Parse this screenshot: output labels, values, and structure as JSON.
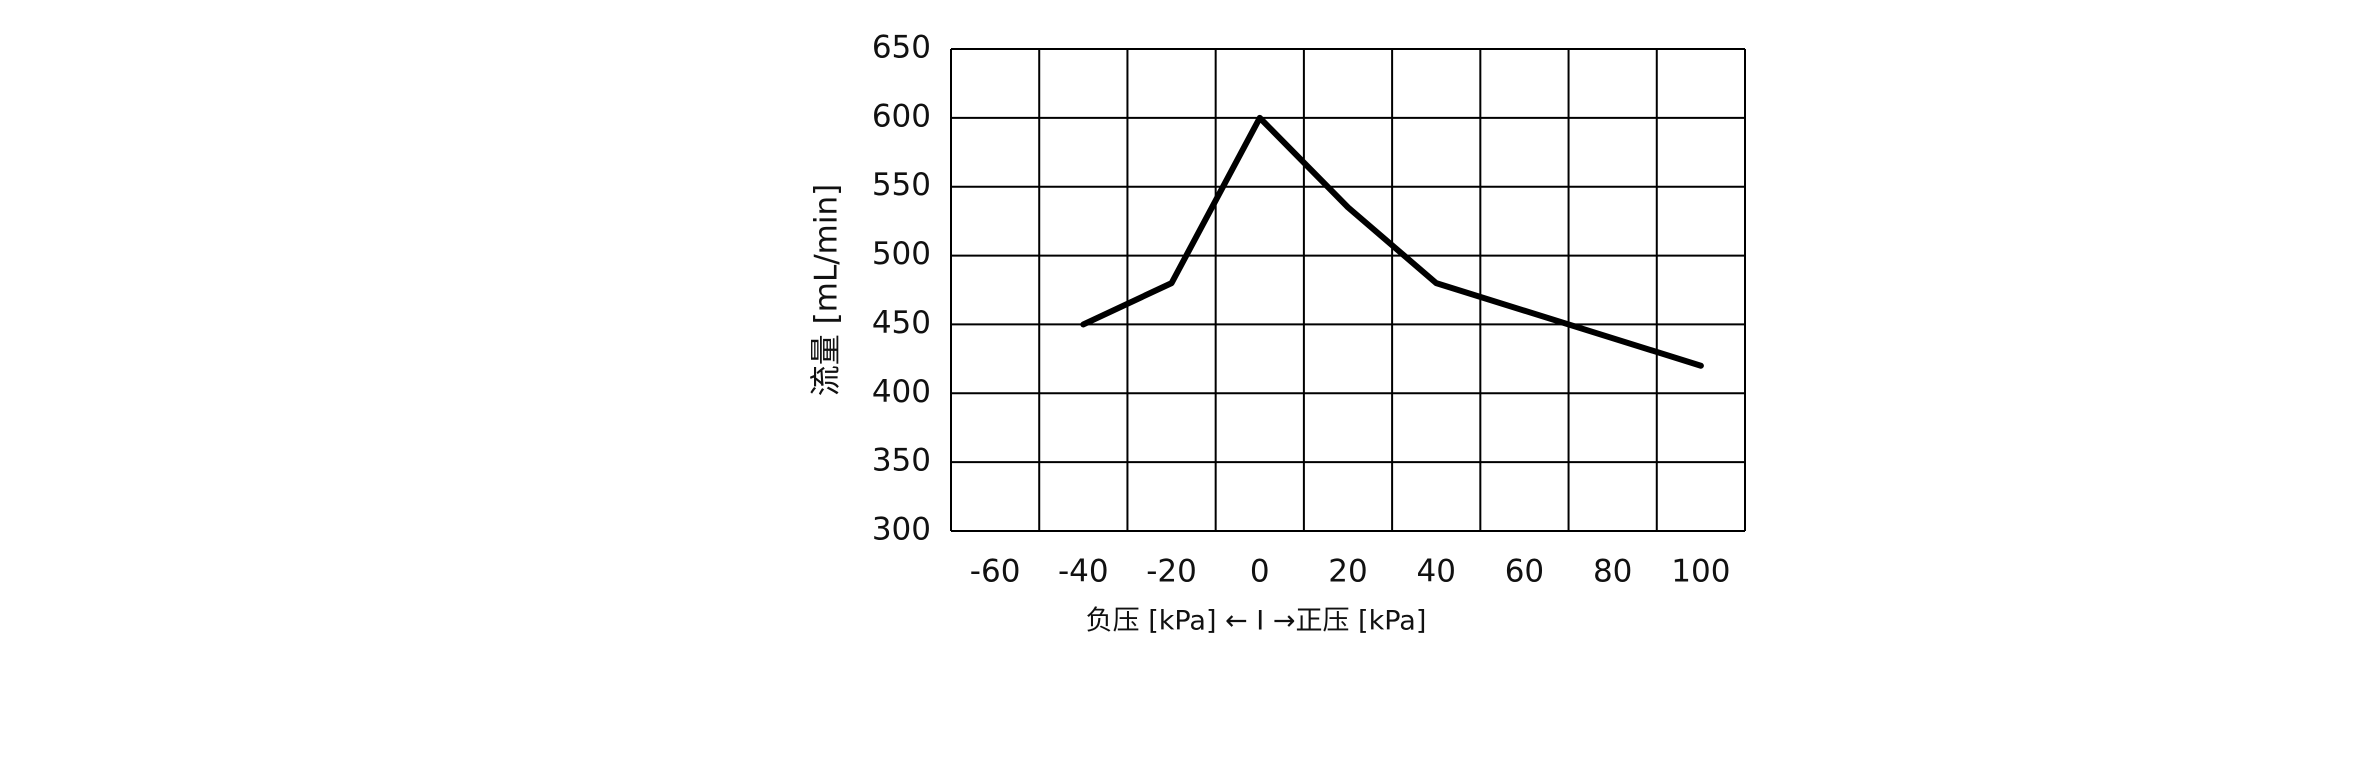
{
  "chart_data": {
    "type": "line",
    "x_label": "负压 [kPa] ← I →正压 [kPa]",
    "y_label": "流量 [mL/min]",
    "x": [
      -40,
      -20,
      0,
      20,
      40,
      100
    ],
    "series": [
      {
        "color": "#000000",
        "values": [
          450,
          480,
          600,
          535,
          480,
          420
        ]
      }
    ],
    "xlim": [
      -70,
      110
    ],
    "xticks": [
      -60,
      -40,
      -20,
      0,
      20,
      40,
      60,
      80,
      100
    ],
    "ylim": [
      300,
      650
    ],
    "yticks": [
      300,
      350,
      400,
      450,
      500,
      550,
      600,
      650
    ],
    "grid": true
  }
}
